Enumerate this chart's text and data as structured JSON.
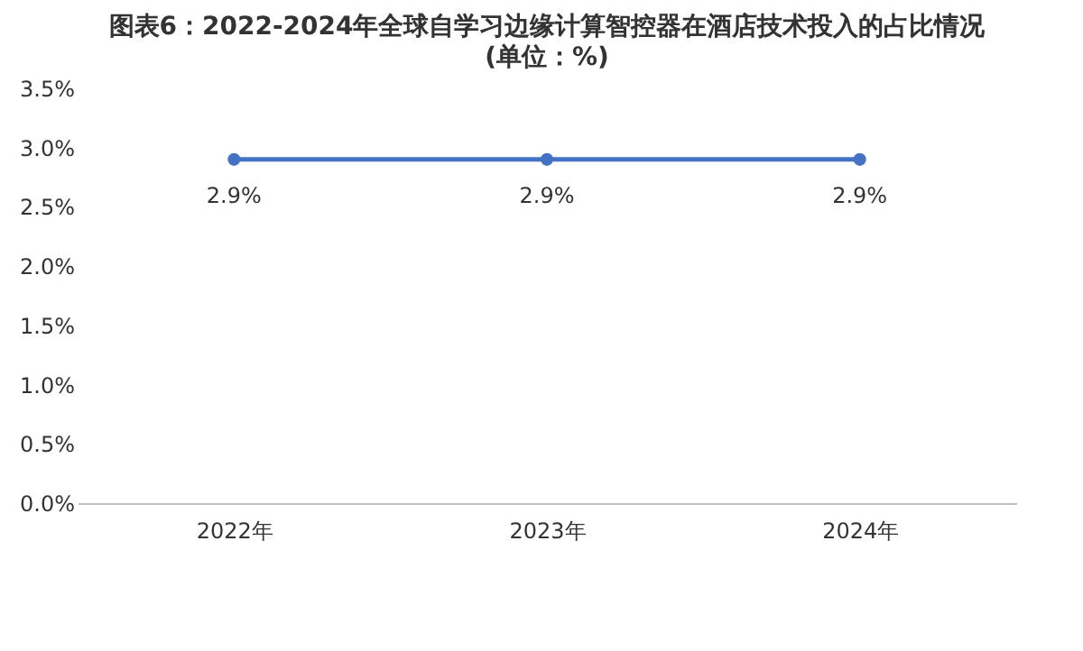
{
  "chart_data": {
    "type": "line",
    "title": "图表6：2022-2024年全球自学习边缘计算智控器在酒店技术投入的占比情况",
    "subtitle": "(单位：%)",
    "categories": [
      "2022年",
      "2023年",
      "2024年"
    ],
    "series": [
      {
        "color": "#4472c4",
        "values": [
          2.9,
          2.9,
          2.9
        ],
        "value_labels": [
          "2.9%",
          "2.9%",
          "2.9%"
        ]
      }
    ],
    "ylim": [
      0,
      3.5
    ],
    "yticks": [
      {
        "value": 0,
        "label": "0.0%"
      },
      {
        "value": 0.5,
        "label": "0.5%"
      },
      {
        "value": 1,
        "label": "1.0%"
      },
      {
        "value": 1.5,
        "label": "1.5%"
      },
      {
        "value": 2,
        "label": "2.0%"
      },
      {
        "value": 2.5,
        "label": "2.5%"
      },
      {
        "value": 3,
        "label": "3.0%"
      },
      {
        "value": 3.5,
        "label": "3.5%"
      }
    ],
    "grid": false,
    "marker": "circle",
    "line_style": "solid"
  }
}
